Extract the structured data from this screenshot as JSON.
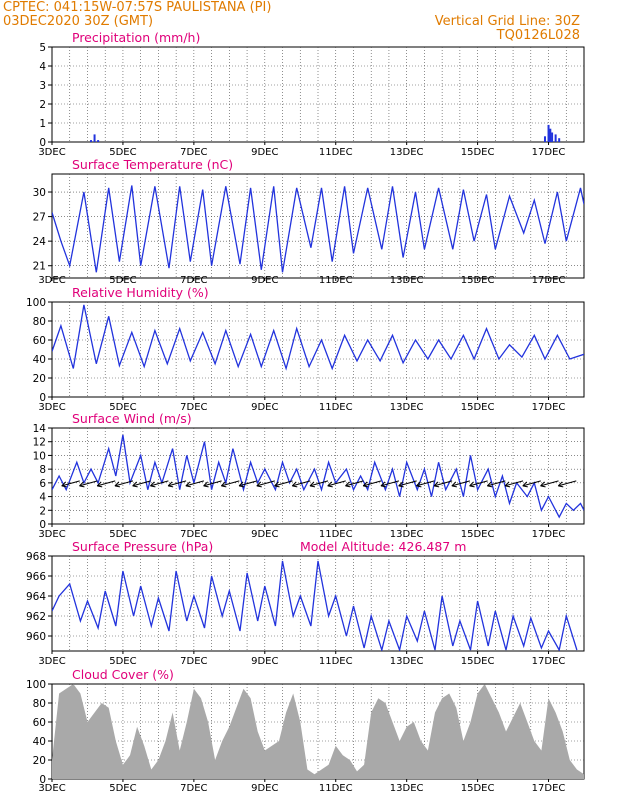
{
  "header": {
    "left_line1": "CPTEC:   041:15W-07:57S  PAULISTANA (PI)",
    "left_line2": "03DEC2020 30Z (GMT)",
    "right_line1": "Vertical Grid Line: 30Z",
    "right_line2": "TQ0126L028"
  },
  "colors": {
    "line": "#2233dd",
    "title": "#e0007a",
    "header": "#e07b00",
    "cloud": "#a9a9a9",
    "wind_arrow": "#000000"
  },
  "x_ticks": [
    "3DEC",
    "5DEC",
    "7DEC",
    "9DEC",
    "11DEC",
    "13DEC",
    "15DEC",
    "17DEC"
  ],
  "x_range_days": [
    3.0,
    18.0
  ],
  "chart_data": [
    {
      "id": "precip",
      "type": "bar",
      "title": "Precipitation (mm/h)",
      "ylim": [
        0,
        5
      ],
      "yticks": [
        0,
        1,
        2,
        3,
        4,
        5
      ],
      "x_days": [
        4.1,
        4.2,
        4.3,
        16.9,
        17.0,
        17.05,
        17.1,
        17.2,
        17.3
      ],
      "values": [
        0.1,
        0.4,
        0.1,
        0.3,
        0.9,
        0.7,
        0.5,
        0.4,
        0.2
      ]
    },
    {
      "id": "temp",
      "type": "line",
      "title": "Surface Temperature (nC)",
      "ylim": [
        19.5,
        32.2
      ],
      "yticks": [
        21,
        24,
        27,
        30
      ],
      "x_days": [
        3.0,
        3.25,
        3.5,
        3.9,
        4.25,
        4.6,
        4.9,
        5.25,
        5.5,
        5.9,
        6.3,
        6.6,
        6.9,
        7.25,
        7.5,
        7.9,
        8.3,
        8.6,
        8.9,
        9.25,
        9.5,
        9.9,
        10.3,
        10.6,
        10.9,
        11.25,
        11.5,
        11.9,
        12.3,
        12.6,
        12.9,
        13.25,
        13.5,
        13.9,
        14.3,
        14.6,
        14.9,
        15.25,
        15.5,
        15.9,
        16.3,
        16.6,
        16.9,
        17.25,
        17.5,
        17.9,
        18.0
      ],
      "values": [
        27.5,
        24.0,
        21.0,
        30.0,
        20.2,
        30.5,
        21.5,
        30.8,
        21.0,
        30.7,
        20.7,
        30.7,
        21.5,
        30.3,
        21.0,
        30.7,
        21.2,
        30.5,
        20.5,
        30.7,
        20.2,
        30.5,
        23.2,
        30.5,
        21.5,
        30.7,
        22.5,
        30.5,
        23.0,
        30.7,
        22.0,
        30.0,
        23.0,
        30.5,
        23.0,
        30.3,
        24.0,
        29.7,
        23.0,
        29.5,
        25.0,
        29.0,
        23.7,
        30.0,
        24.0,
        30.5,
        28.5
      ]
    },
    {
      "id": "rh",
      "type": "line",
      "title": "Relative Humidity (%)",
      "ylim": [
        0,
        100
      ],
      "yticks": [
        0,
        20,
        40,
        60,
        80,
        100
      ],
      "x_days": [
        3.0,
        3.25,
        3.6,
        3.9,
        4.25,
        4.6,
        4.9,
        5.25,
        5.6,
        5.9,
        6.25,
        6.6,
        6.9,
        7.25,
        7.6,
        7.9,
        8.25,
        8.6,
        8.9,
        9.25,
        9.6,
        9.9,
        10.25,
        10.6,
        10.9,
        11.25,
        11.6,
        11.9,
        12.25,
        12.6,
        12.9,
        13.25,
        13.6,
        13.9,
        14.25,
        14.6,
        14.9,
        15.25,
        15.6,
        15.9,
        16.25,
        16.6,
        16.9,
        17.25,
        17.6,
        18.0
      ],
      "values": [
        48,
        75,
        30,
        97,
        35,
        85,
        33,
        68,
        32,
        70,
        35,
        72,
        38,
        68,
        35,
        70,
        32,
        66,
        32,
        70,
        30,
        72,
        32,
        60,
        30,
        65,
        38,
        60,
        38,
        65,
        36,
        60,
        40,
        60,
        40,
        65,
        40,
        72,
        40,
        55,
        42,
        65,
        40,
        65,
        40,
        45
      ]
    },
    {
      "id": "wind",
      "type": "line",
      "title": "Surface Wind (m/s)",
      "ylim": [
        0,
        14
      ],
      "yticks": [
        0,
        2,
        4,
        6,
        8,
        10,
        12,
        14
      ],
      "x_days": [
        3.0,
        3.2,
        3.4,
        3.7,
        3.9,
        4.1,
        4.3,
        4.6,
        4.8,
        5.0,
        5.2,
        5.5,
        5.7,
        5.9,
        6.1,
        6.4,
        6.6,
        6.8,
        7.0,
        7.3,
        7.5,
        7.7,
        7.9,
        8.1,
        8.4,
        8.6,
        8.8,
        9.0,
        9.3,
        9.5,
        9.7,
        9.9,
        10.1,
        10.4,
        10.6,
        10.8,
        11.0,
        11.3,
        11.5,
        11.7,
        11.9,
        12.1,
        12.4,
        12.6,
        12.8,
        13.0,
        13.3,
        13.5,
        13.7,
        13.9,
        14.1,
        14.4,
        14.6,
        14.8,
        15.0,
        15.3,
        15.5,
        15.7,
        15.9,
        16.1,
        16.4,
        16.6,
        16.8,
        17.0,
        17.3,
        17.5,
        17.7,
        17.9,
        18.0
      ],
      "values": [
        5,
        7,
        5,
        9,
        6,
        8,
        6,
        11,
        7,
        13,
        6,
        10,
        5,
        9,
        6,
        11,
        5,
        10,
        6,
        12,
        5,
        9,
        6,
        11,
        5,
        9,
        6,
        8,
        5,
        9,
        6,
        8,
        5,
        8,
        5,
        9,
        6,
        8,
        5,
        7,
        5,
        9,
        5,
        8,
        4,
        9,
        5,
        8,
        4,
        9,
        5,
        8,
        4,
        10,
        5,
        8,
        4,
        7,
        3,
        6,
        4,
        6,
        2,
        4,
        1,
        3,
        2,
        3,
        2
      ]
    },
    {
      "id": "pressure",
      "type": "line",
      "title": "Surface Pressure (hPa)",
      "annotation": "Model Altitude: 426.487 m",
      "ylim": [
        958.5,
        968
      ],
      "yticks": [
        960,
        962,
        964,
        966,
        968
      ],
      "x_days": [
        3.0,
        3.2,
        3.5,
        3.8,
        4.0,
        4.3,
        4.5,
        4.8,
        5.0,
        5.3,
        5.5,
        5.8,
        6.0,
        6.3,
        6.5,
        6.8,
        7.0,
        7.3,
        7.5,
        7.8,
        8.0,
        8.3,
        8.5,
        8.8,
        9.0,
        9.3,
        9.5,
        9.8,
        10.0,
        10.3,
        10.5,
        10.8,
        11.0,
        11.3,
        11.5,
        11.8,
        12.0,
        12.3,
        12.5,
        12.8,
        13.0,
        13.3,
        13.5,
        13.8,
        14.0,
        14.3,
        14.5,
        14.8,
        15.0,
        15.3,
        15.5,
        15.8,
        16.0,
        16.3,
        16.5,
        16.8,
        17.0,
        17.3,
        17.5,
        17.8
      ],
      "values": [
        962.5,
        964.0,
        965.2,
        961.5,
        963.5,
        960.8,
        964.5,
        961.0,
        966.5,
        962.0,
        965.0,
        961.0,
        963.8,
        960.5,
        966.5,
        961.5,
        964.0,
        960.8,
        966.0,
        962.0,
        964.5,
        960.5,
        966.3,
        961.5,
        965.0,
        961.0,
        967.5,
        962.0,
        964.0,
        961.0,
        967.5,
        962.0,
        964.0,
        960.0,
        963.0,
        958.8,
        962.0,
        958.6,
        961.5,
        958.6,
        962.0,
        959.5,
        962.5,
        958.6,
        964.0,
        959.0,
        961.5,
        958.6,
        963.5,
        959.0,
        962.5,
        958.6,
        962.0,
        959.0,
        961.8,
        958.8,
        960.5,
        958.6,
        962.0,
        958.6
      ]
    },
    {
      "id": "cloud",
      "type": "area",
      "title": "Cloud Cover (%)",
      "ylim": [
        0,
        100
      ],
      "yticks": [
        0,
        20,
        40,
        60,
        80,
        100
      ],
      "x_days": [
        3.0,
        3.2,
        3.4,
        3.6,
        3.8,
        4.0,
        4.2,
        4.4,
        4.6,
        4.8,
        5.0,
        5.2,
        5.4,
        5.6,
        5.8,
        6.0,
        6.2,
        6.4,
        6.6,
        6.8,
        7.0,
        7.2,
        7.4,
        7.6,
        7.8,
        8.0,
        8.2,
        8.4,
        8.6,
        8.8,
        9.0,
        9.2,
        9.4,
        9.6,
        9.8,
        10.0,
        10.2,
        10.4,
        10.6,
        10.8,
        11.0,
        11.2,
        11.4,
        11.6,
        11.8,
        12.0,
        12.2,
        12.4,
        12.6,
        12.8,
        13.0,
        13.2,
        13.4,
        13.6,
        13.8,
        14.0,
        14.2,
        14.4,
        14.6,
        14.8,
        15.0,
        15.2,
        15.4,
        15.6,
        15.8,
        16.0,
        16.2,
        16.4,
        16.6,
        16.8,
        17.0,
        17.2,
        17.4,
        17.6,
        17.8,
        18.0
      ],
      "values": [
        20,
        90,
        95,
        100,
        90,
        60,
        70,
        80,
        75,
        40,
        15,
        25,
        55,
        35,
        10,
        20,
        40,
        70,
        30,
        60,
        95,
        85,
        60,
        20,
        40,
        55,
        75,
        95,
        85,
        50,
        30,
        35,
        40,
        70,
        90,
        60,
        10,
        5,
        10,
        15,
        35,
        25,
        20,
        8,
        15,
        70,
        85,
        80,
        60,
        40,
        55,
        60,
        40,
        30,
        70,
        85,
        90,
        75,
        40,
        60,
        90,
        100,
        85,
        70,
        50,
        65,
        80,
        60,
        40,
        30,
        85,
        70,
        50,
        20,
        10,
        5
      ]
    }
  ]
}
